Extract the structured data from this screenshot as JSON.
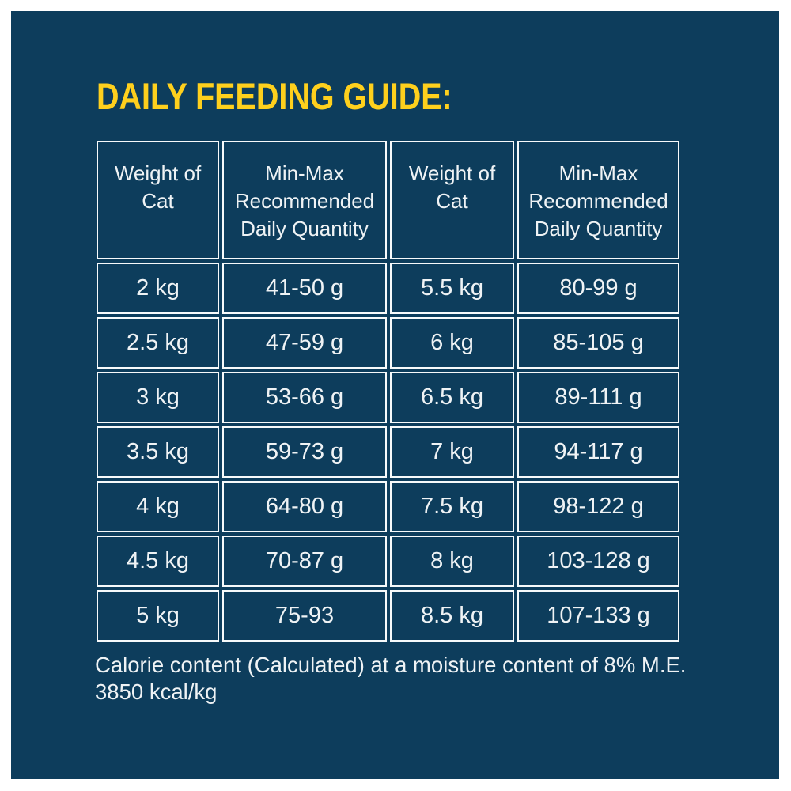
{
  "page": {
    "margin_color": "#ffffff",
    "panel_color": "#0d3d5c",
    "title_color": "#fed01d",
    "text_color": "#eff3f5",
    "border_color": "#f7fafb"
  },
  "title": {
    "text": "DAILY FEEDING GUIDE:"
  },
  "table": {
    "headers": [
      "Weight of Cat",
      "Min-Max Recommended Daily Quantity",
      "Weight of Cat",
      "Min-Max Recommended Daily Quantity"
    ],
    "rows": [
      [
        "2 kg",
        "41-50 g",
        "5.5 kg",
        "80-99 g"
      ],
      [
        "2.5 kg",
        "47-59 g",
        "6 kg",
        "85-105 g"
      ],
      [
        "3 kg",
        "53-66 g",
        "6.5 kg",
        "89-111 g"
      ],
      [
        "3.5 kg",
        "59-73 g",
        "7 kg",
        "94-117 g"
      ],
      [
        "4 kg",
        "64-80 g",
        "7.5 kg",
        "98-122 g"
      ],
      [
        "4.5 kg",
        "70-87 g",
        "8 kg",
        "103-128 g"
      ],
      [
        "5 kg",
        "75-93",
        "8.5 kg",
        "107-133 g"
      ]
    ]
  },
  "footer": {
    "line1": "Calorie content (Calculated) at a moisture content of 8% M.E.",
    "line2": "3850 kcal/kg"
  }
}
